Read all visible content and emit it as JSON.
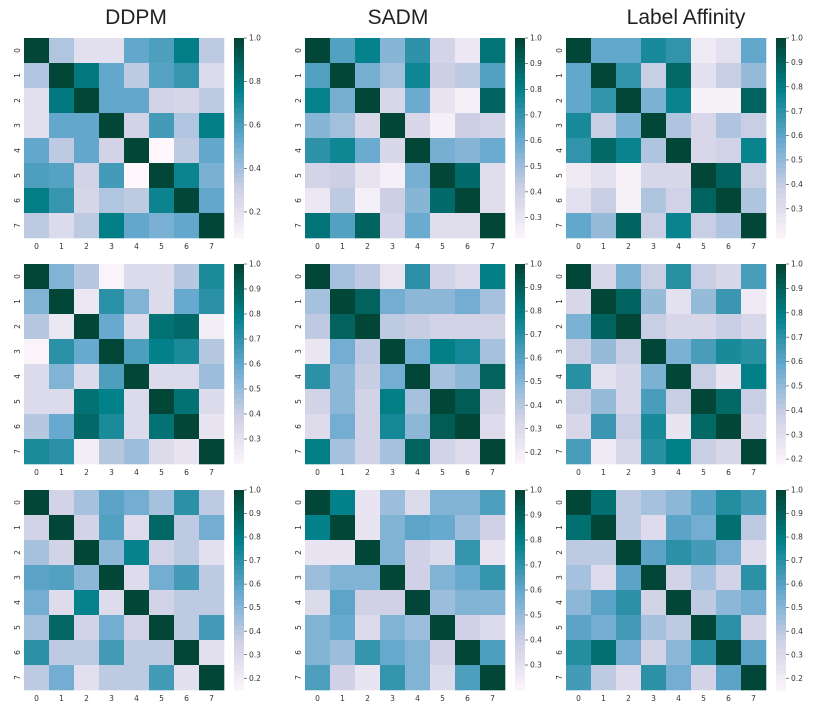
{
  "columns": [
    "DDPM",
    "SADM",
    "Label Affinity"
  ],
  "chart_data": [
    {
      "type": "heatmap",
      "row": 0,
      "col": 0,
      "labels": [
        "0",
        "1",
        "2",
        "3",
        "4",
        "5",
        "6",
        "7"
      ],
      "colorbar_ticks": [
        "1.0",
        "0.8",
        "0.6",
        "0.4",
        "0.2"
      ],
      "vmin": 0.08,
      "vmax": 1.0,
      "values": [
        [
          1.0,
          0.38,
          0.22,
          0.22,
          0.55,
          0.6,
          0.78,
          0.35
        ],
        [
          0.38,
          1.0,
          0.8,
          0.55,
          0.35,
          0.58,
          0.65,
          0.25
        ],
        [
          0.22,
          0.8,
          1.0,
          0.55,
          0.55,
          0.3,
          0.28,
          0.35
        ],
        [
          0.22,
          0.55,
          0.55,
          1.0,
          0.3,
          0.62,
          0.38,
          0.78
        ],
        [
          0.55,
          0.35,
          0.55,
          0.3,
          1.0,
          0.08,
          0.35,
          0.55
        ],
        [
          0.6,
          0.58,
          0.3,
          0.62,
          0.08,
          1.0,
          0.75,
          0.5
        ],
        [
          0.78,
          0.65,
          0.28,
          0.38,
          0.35,
          0.75,
          1.0,
          0.55
        ],
        [
          0.35,
          0.25,
          0.35,
          0.78,
          0.55,
          0.5,
          0.55,
          1.0
        ]
      ]
    },
    {
      "type": "heatmap",
      "row": 0,
      "col": 1,
      "labels": [
        "0",
        "1",
        "2",
        "3",
        "4",
        "5",
        "6",
        "7"
      ],
      "colorbar_ticks": [
        "1.0",
        "0.9",
        "0.8",
        "0.7",
        "0.6",
        "0.5",
        "0.4",
        "0.3"
      ],
      "vmin": 0.22,
      "vmax": 1.0,
      "values": [
        [
          1.0,
          0.65,
          0.8,
          0.55,
          0.72,
          0.4,
          0.3,
          0.85
        ],
        [
          0.65,
          1.0,
          0.58,
          0.5,
          0.78,
          0.42,
          0.45,
          0.65
        ],
        [
          0.8,
          0.58,
          1.0,
          0.38,
          0.6,
          0.32,
          0.26,
          0.9
        ],
        [
          0.55,
          0.5,
          0.38,
          1.0,
          0.38,
          0.26,
          0.42,
          0.4
        ],
        [
          0.72,
          0.78,
          0.6,
          0.38,
          1.0,
          0.58,
          0.55,
          0.6
        ],
        [
          0.4,
          0.42,
          0.32,
          0.26,
          0.58,
          1.0,
          0.88,
          0.35
        ],
        [
          0.3,
          0.45,
          0.26,
          0.42,
          0.55,
          0.88,
          1.0,
          0.35
        ],
        [
          0.85,
          0.65,
          0.9,
          0.4,
          0.6,
          0.35,
          0.35,
          1.0
        ]
      ]
    },
    {
      "type": "heatmap",
      "row": 0,
      "col": 2,
      "labels": [
        "0",
        "1",
        "2",
        "3",
        "4",
        "5",
        "6",
        "7"
      ],
      "colorbar_ticks": [
        "1.0",
        "0.9",
        "0.8",
        "0.7",
        "0.6",
        "0.5",
        "0.4",
        "0.3"
      ],
      "vmin": 0.18,
      "vmax": 1.0,
      "values": [
        [
          1.0,
          0.6,
          0.6,
          0.75,
          0.7,
          0.25,
          0.3,
          0.6
        ],
        [
          0.6,
          1.0,
          0.7,
          0.4,
          0.88,
          0.3,
          0.4,
          0.5
        ],
        [
          0.6,
          0.7,
          1.0,
          0.55,
          0.78,
          0.22,
          0.22,
          0.9
        ],
        [
          0.75,
          0.4,
          0.55,
          1.0,
          0.45,
          0.35,
          0.45,
          0.4
        ],
        [
          0.7,
          0.88,
          0.78,
          0.45,
          1.0,
          0.35,
          0.38,
          0.78
        ],
        [
          0.25,
          0.3,
          0.22,
          0.35,
          0.35,
          1.0,
          0.9,
          0.4
        ],
        [
          0.3,
          0.4,
          0.22,
          0.45,
          0.38,
          0.9,
          1.0,
          0.45
        ],
        [
          0.6,
          0.5,
          0.9,
          0.4,
          0.78,
          0.4,
          0.45,
          1.0
        ]
      ]
    },
    {
      "type": "heatmap",
      "row": 1,
      "col": 0,
      "labels": [
        "0",
        "1",
        "2",
        "3",
        "4",
        "5",
        "6",
        "7"
      ],
      "colorbar_ticks": [
        "1.0",
        "0.9",
        "0.8",
        "0.7",
        "0.6",
        "0.5",
        "0.4",
        "0.3"
      ],
      "vmin": 0.2,
      "vmax": 1.0,
      "values": [
        [
          1.0,
          0.55,
          0.45,
          0.22,
          0.35,
          0.35,
          0.45,
          0.75
        ],
        [
          0.55,
          1.0,
          0.28,
          0.72,
          0.55,
          0.35,
          0.6,
          0.72
        ],
        [
          0.45,
          0.28,
          1.0,
          0.6,
          0.35,
          0.85,
          0.88,
          0.25
        ],
        [
          0.22,
          0.72,
          0.6,
          1.0,
          0.65,
          0.8,
          0.75,
          0.45
        ],
        [
          0.35,
          0.55,
          0.35,
          0.65,
          1.0,
          0.35,
          0.35,
          0.5
        ],
        [
          0.35,
          0.35,
          0.85,
          0.8,
          0.35,
          1.0,
          0.85,
          0.35
        ],
        [
          0.45,
          0.6,
          0.88,
          0.75,
          0.35,
          0.85,
          1.0,
          0.3
        ],
        [
          0.75,
          0.72,
          0.25,
          0.45,
          0.5,
          0.35,
          0.3,
          1.0
        ]
      ]
    },
    {
      "type": "heatmap",
      "row": 1,
      "col": 1,
      "labels": [
        "0",
        "1",
        "2",
        "3",
        "4",
        "5",
        "6",
        "7"
      ],
      "colorbar_ticks": [
        "1.0",
        "0.9",
        "0.8",
        "0.7",
        "0.6",
        "0.5",
        "0.4",
        "0.3",
        "0.2"
      ],
      "vmin": 0.15,
      "vmax": 1.0,
      "values": [
        [
          1.0,
          0.45,
          0.4,
          0.25,
          0.7,
          0.35,
          0.3,
          0.8
        ],
        [
          0.45,
          1.0,
          0.9,
          0.55,
          0.5,
          0.5,
          0.55,
          0.45
        ],
        [
          0.4,
          0.9,
          1.0,
          0.4,
          0.38,
          0.35,
          0.35,
          0.35
        ],
        [
          0.25,
          0.55,
          0.4,
          1.0,
          0.55,
          0.8,
          0.75,
          0.45
        ],
        [
          0.7,
          0.5,
          0.38,
          0.55,
          1.0,
          0.45,
          0.5,
          0.9
        ],
        [
          0.35,
          0.5,
          0.35,
          0.8,
          0.45,
          1.0,
          0.92,
          0.35
        ],
        [
          0.3,
          0.55,
          0.35,
          0.75,
          0.5,
          0.92,
          1.0,
          0.3
        ],
        [
          0.8,
          0.45,
          0.35,
          0.45,
          0.9,
          0.35,
          0.3,
          1.0
        ]
      ]
    },
    {
      "type": "heatmap",
      "row": 1,
      "col": 2,
      "labels": [
        "0",
        "1",
        "2",
        "3",
        "4",
        "5",
        "6",
        "7"
      ],
      "colorbar_ticks": [
        "1.0",
        "0.9",
        "0.8",
        "0.7",
        "0.6",
        "0.5",
        "0.4",
        "0.3",
        "0.2"
      ],
      "vmin": 0.18,
      "vmax": 1.0,
      "values": [
        [
          1.0,
          0.35,
          0.55,
          0.4,
          0.72,
          0.4,
          0.35,
          0.65
        ],
        [
          0.35,
          1.0,
          0.9,
          0.5,
          0.3,
          0.5,
          0.68,
          0.25
        ],
        [
          0.55,
          0.9,
          1.0,
          0.4,
          0.35,
          0.35,
          0.4,
          0.35
        ],
        [
          0.4,
          0.5,
          0.4,
          1.0,
          0.55,
          0.65,
          0.75,
          0.72
        ],
        [
          0.72,
          0.3,
          0.35,
          0.55,
          1.0,
          0.4,
          0.28,
          0.8
        ],
        [
          0.4,
          0.5,
          0.35,
          0.65,
          0.4,
          1.0,
          0.88,
          0.4
        ],
        [
          0.35,
          0.68,
          0.4,
          0.75,
          0.28,
          0.88,
          1.0,
          0.35
        ],
        [
          0.65,
          0.25,
          0.35,
          0.72,
          0.8,
          0.4,
          0.35,
          1.0
        ]
      ]
    },
    {
      "type": "heatmap",
      "row": 2,
      "col": 0,
      "labels": [
        "0",
        "1",
        "2",
        "3",
        "4",
        "5",
        "6",
        "7"
      ],
      "colorbar_ticks": [
        "1.0",
        "0.9",
        "0.8",
        "0.7",
        "0.6",
        "0.5",
        "0.4",
        "0.3",
        "0.2"
      ],
      "vmin": 0.15,
      "vmax": 1.0,
      "values": [
        [
          1.0,
          0.35,
          0.45,
          0.6,
          0.55,
          0.45,
          0.7,
          0.4
        ],
        [
          0.35,
          1.0,
          0.35,
          0.62,
          0.3,
          0.88,
          0.4,
          0.55
        ],
        [
          0.45,
          0.35,
          1.0,
          0.5,
          0.78,
          0.35,
          0.4,
          0.28
        ],
        [
          0.6,
          0.62,
          0.5,
          1.0,
          0.3,
          0.55,
          0.65,
          0.4
        ],
        [
          0.55,
          0.3,
          0.78,
          0.3,
          1.0,
          0.35,
          0.4,
          0.4
        ],
        [
          0.45,
          0.88,
          0.35,
          0.55,
          0.35,
          1.0,
          0.4,
          0.65
        ],
        [
          0.7,
          0.4,
          0.4,
          0.65,
          0.4,
          0.4,
          1.0,
          0.28
        ],
        [
          0.4,
          0.55,
          0.28,
          0.4,
          0.4,
          0.65,
          0.28,
          1.0
        ]
      ]
    },
    {
      "type": "heatmap",
      "row": 2,
      "col": 1,
      "labels": [
        "0",
        "1",
        "2",
        "3",
        "4",
        "5",
        "6",
        "7"
      ],
      "colorbar_ticks": [
        "1.0",
        "0.9",
        "0.8",
        "0.7",
        "0.6",
        "0.5",
        "0.4",
        "0.3"
      ],
      "vmin": 0.2,
      "vmax": 1.0,
      "values": [
        [
          1.0,
          0.8,
          0.3,
          0.5,
          0.35,
          0.55,
          0.55,
          0.65
        ],
        [
          0.8,
          1.0,
          0.3,
          0.55,
          0.62,
          0.6,
          0.5,
          0.4
        ],
        [
          0.3,
          0.3,
          1.0,
          0.55,
          0.4,
          0.35,
          0.7,
          0.3
        ],
        [
          0.5,
          0.55,
          0.55,
          1.0,
          0.4,
          0.55,
          0.6,
          0.7
        ],
        [
          0.35,
          0.62,
          0.4,
          0.4,
          1.0,
          0.5,
          0.55,
          0.55
        ],
        [
          0.55,
          0.6,
          0.35,
          0.55,
          0.5,
          1.0,
          0.4,
          0.35
        ],
        [
          0.55,
          0.5,
          0.7,
          0.6,
          0.55,
          0.4,
          1.0,
          0.65
        ],
        [
          0.65,
          0.4,
          0.3,
          0.7,
          0.55,
          0.35,
          0.65,
          1.0
        ]
      ]
    },
    {
      "type": "heatmap",
      "row": 2,
      "col": 2,
      "labels": [
        "0",
        "1",
        "2",
        "3",
        "4",
        "5",
        "6",
        "7"
      ],
      "colorbar_ticks": [
        "1.0",
        "0.9",
        "0.8",
        "0.7",
        "0.6",
        "0.5",
        "0.4",
        "0.3",
        "0.2"
      ],
      "vmin": 0.15,
      "vmax": 1.0,
      "values": [
        [
          1.0,
          0.85,
          0.4,
          0.45,
          0.5,
          0.6,
          0.72,
          0.65
        ],
        [
          0.85,
          1.0,
          0.4,
          0.3,
          0.6,
          0.55,
          0.85,
          0.4
        ],
        [
          0.4,
          0.4,
          1.0,
          0.6,
          0.7,
          0.65,
          0.55,
          0.3
        ],
        [
          0.45,
          0.3,
          0.6,
          1.0,
          0.35,
          0.45,
          0.35,
          0.7
        ],
        [
          0.5,
          0.6,
          0.7,
          0.35,
          1.0,
          0.4,
          0.5,
          0.55
        ],
        [
          0.6,
          0.55,
          0.65,
          0.45,
          0.4,
          1.0,
          0.7,
          0.35
        ],
        [
          0.72,
          0.85,
          0.55,
          0.35,
          0.5,
          0.7,
          1.0,
          0.6
        ],
        [
          0.65,
          0.4,
          0.3,
          0.7,
          0.55,
          0.35,
          0.6,
          1.0
        ]
      ]
    }
  ]
}
